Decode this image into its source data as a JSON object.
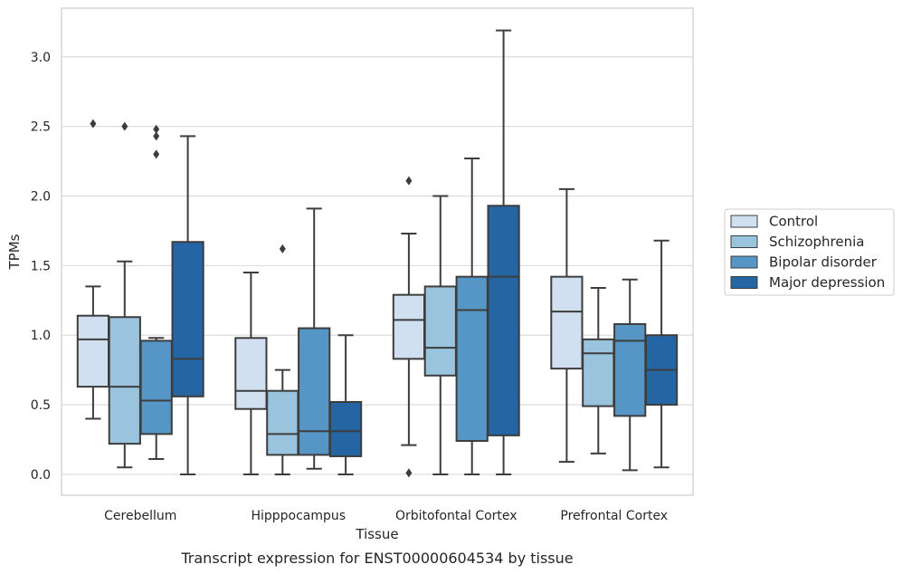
{
  "chart_data": {
    "type": "box",
    "title": "",
    "caption": "Transcript expression for ENST00000604534 by tissue",
    "xlabel": "Tissue",
    "ylabel": "TPMs",
    "ylim": [
      -0.15,
      3.35
    ],
    "yticks": [
      "0.0",
      "0.5",
      "1.0",
      "1.5",
      "2.0",
      "2.5",
      "3.0"
    ],
    "grid": "horizontal",
    "legend_position": "right",
    "categories": [
      "Cerebellum",
      "Hipppocampus",
      "Orbitofontal Cortex",
      "Prefrontal Cortex"
    ],
    "series": [
      {
        "name": "Control",
        "color": "#d0e0f0",
        "boxes": [
          {
            "whisker_low": 0.4,
            "q1": 0.63,
            "median": 0.97,
            "q3": 1.14,
            "whisker_high": 1.35,
            "outliers": [
              2.52
            ]
          },
          {
            "whisker_low": 0.0,
            "q1": 0.47,
            "median": 0.6,
            "q3": 0.98,
            "whisker_high": 1.45,
            "outliers": []
          },
          {
            "whisker_low": 0.21,
            "q1": 0.83,
            "median": 1.11,
            "q3": 1.29,
            "whisker_high": 1.73,
            "outliers": [
              2.11,
              0.01
            ]
          },
          {
            "whisker_low": 0.09,
            "q1": 0.76,
            "median": 1.17,
            "q3": 1.42,
            "whisker_high": 2.05,
            "outliers": []
          }
        ]
      },
      {
        "name": "Schizophrenia",
        "color": "#9ac3dd",
        "boxes": [
          {
            "whisker_low": 0.05,
            "q1": 0.22,
            "median": 0.63,
            "q3": 1.13,
            "whisker_high": 1.53,
            "outliers": [
              2.5
            ]
          },
          {
            "whisker_low": 0.0,
            "q1": 0.14,
            "median": 0.29,
            "q3": 0.6,
            "whisker_high": 0.75,
            "outliers": [
              1.62
            ]
          },
          {
            "whisker_low": 0.0,
            "q1": 0.71,
            "median": 0.91,
            "q3": 1.35,
            "whisker_high": 2.0,
            "outliers": []
          },
          {
            "whisker_low": 0.15,
            "q1": 0.49,
            "median": 0.87,
            "q3": 0.97,
            "whisker_high": 1.34,
            "outliers": []
          }
        ]
      },
      {
        "name": "Bipolar disorder",
        "color": "#5696c6",
        "boxes": [
          {
            "whisker_low": 0.11,
            "q1": 0.29,
            "median": 0.53,
            "q3": 0.96,
            "whisker_high": 0.98,
            "outliers": [
              2.48,
              2.43,
              2.3
            ]
          },
          {
            "whisker_low": 0.04,
            "q1": 0.14,
            "median": 0.31,
            "q3": 1.05,
            "whisker_high": 1.91,
            "outliers": []
          },
          {
            "whisker_low": 0.0,
            "q1": 0.24,
            "median": 1.18,
            "q3": 1.42,
            "whisker_high": 2.27,
            "outliers": []
          },
          {
            "whisker_low": 0.03,
            "q1": 0.42,
            "median": 0.96,
            "q3": 1.08,
            "whisker_high": 1.4,
            "outliers": []
          }
        ]
      },
      {
        "name": "Major depression",
        "color": "#2565a4",
        "boxes": [
          {
            "whisker_low": 0.0,
            "q1": 0.56,
            "median": 0.83,
            "q3": 1.67,
            "whisker_high": 2.43,
            "outliers": []
          },
          {
            "whisker_low": 0.0,
            "q1": 0.13,
            "median": 0.31,
            "q3": 0.52,
            "whisker_high": 1.0,
            "outliers": []
          },
          {
            "whisker_low": 0.0,
            "q1": 0.28,
            "median": 1.42,
            "q3": 1.93,
            "whisker_high": 3.19,
            "outliers": []
          },
          {
            "whisker_low": 0.05,
            "q1": 0.5,
            "median": 0.75,
            "q3": 1.0,
            "whisker_high": 1.68,
            "outliers": []
          }
        ]
      }
    ]
  }
}
